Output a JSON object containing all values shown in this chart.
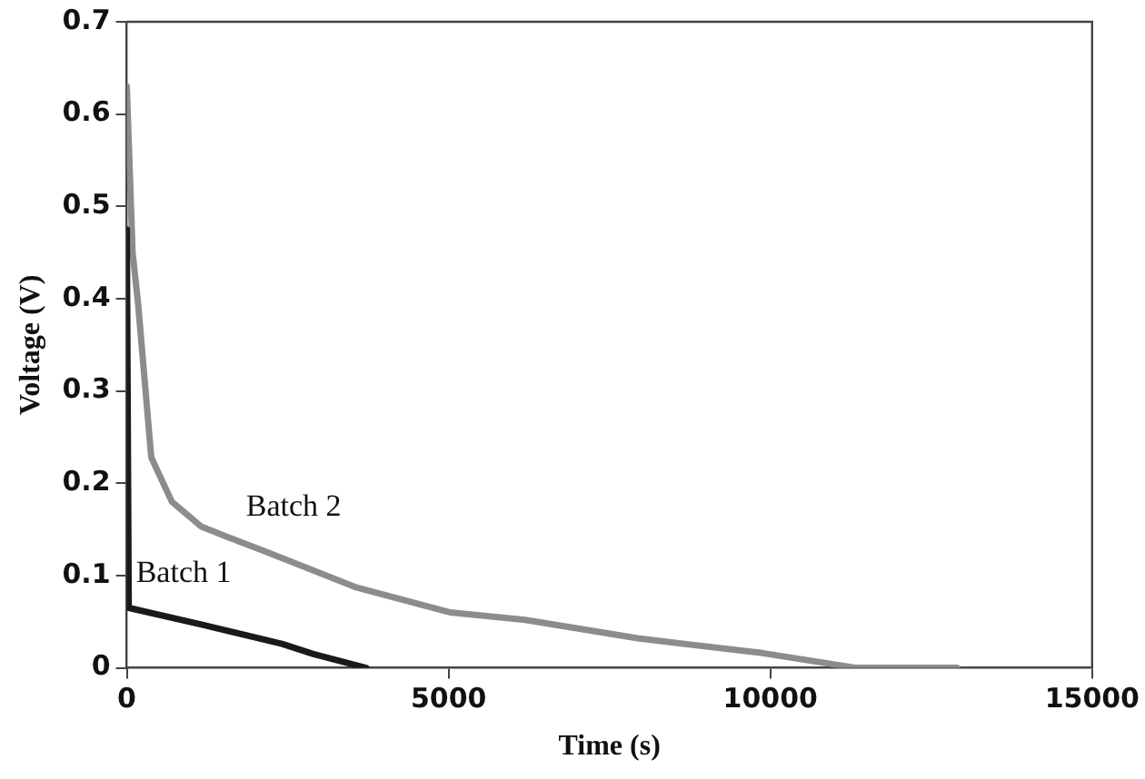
{
  "chart_data": {
    "type": "line",
    "xlabel": "Time (s)",
    "ylabel": "Voltage (V)",
    "xlim": [
      0,
      15000
    ],
    "xticks": [
      0,
      5000,
      10000,
      15000
    ],
    "ylim": [
      0,
      0.7
    ],
    "yticks": [
      0,
      0.1,
      0.2,
      0.3,
      0.4,
      0.5,
      0.6,
      0.7
    ],
    "grid": false,
    "legend": false,
    "marker": "none",
    "line_style": "solid",
    "series": [
      {
        "color": "#1a1a1a",
        "x": [
          0,
          30,
          1160,
          2410,
          2900,
          3720
        ],
        "values": [
          0.475,
          0.065,
          0.047,
          0.026,
          0.015,
          0
        ]
      },
      {
        "color": "#8c8c8c",
        "x": [
          0,
          90,
          175,
          380,
          700,
          1160,
          1740,
          2120,
          3575,
          5030,
          6190,
          7940,
          9880,
          11340,
          12900
        ],
        "values": [
          0.63,
          0.45,
          0.395,
          0.228,
          0.18,
          0.153,
          0.137,
          0.127,
          0.087,
          0.06,
          0.052,
          0.032,
          0.016,
          0,
          0
        ]
      }
    ],
    "annotations": [
      {
        "text": "Batch 1",
        "x": 30,
        "y": 0.065
      },
      {
        "text": "Batch 2",
        "x": 1740,
        "y": 0.137
      }
    ]
  }
}
